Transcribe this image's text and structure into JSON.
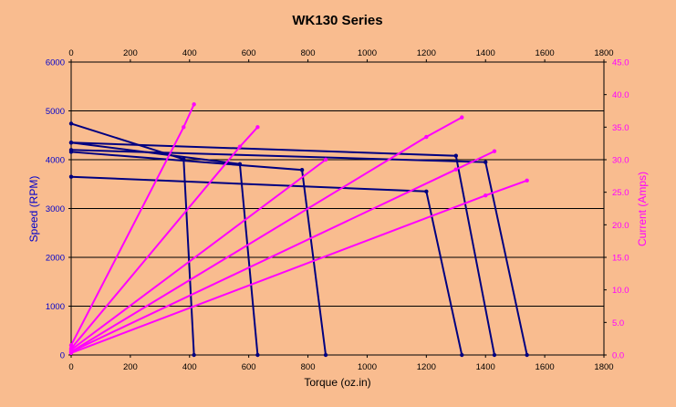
{
  "chart_data": {
    "type": "line",
    "title": "WK130 Series",
    "xlabel": "Torque (oz.in)",
    "ylabel_left": "Speed (RPM)",
    "ylabel_right": "Current (Amps)",
    "xlim": [
      0,
      1800
    ],
    "ylim_left": [
      0,
      6000
    ],
    "ylim_right": [
      0,
      45
    ],
    "x_ticks": [
      "0",
      "200",
      "400",
      "600",
      "800",
      "1000",
      "1200",
      "1400",
      "1600",
      "1800"
    ],
    "y_left_ticks": [
      "0",
      "1000",
      "2000",
      "3000",
      "4000",
      "5000",
      "6000"
    ],
    "y_right_ticks": [
      "0.0",
      "5.0",
      "10.0",
      "15.0",
      "20.0",
      "25.0",
      "30.0",
      "35.0",
      "40.0",
      "45.0"
    ],
    "grid": "horizontal",
    "colors": {
      "speed": "#000080",
      "current": "#FF00FF",
      "plot_bg": "#F9BC8F",
      "axis_left": "#0000CC",
      "axis_right": "#FF00FF"
    },
    "speed_series": [
      {
        "x": [
          0,
          380,
          415
        ],
        "y": [
          4740,
          4010,
          0
        ]
      },
      {
        "x": [
          0,
          570,
          630
        ],
        "y": [
          4350,
          3910,
          0
        ]
      },
      {
        "x": [
          0,
          780,
          860
        ],
        "y": [
          4160,
          3790,
          0
        ]
      },
      {
        "x": [
          0,
          1200,
          1320
        ],
        "y": [
          3650,
          3350,
          0
        ]
      },
      {
        "x": [
          0,
          1300,
          1430
        ],
        "y": [
          4350,
          4080,
          0
        ]
      },
      {
        "x": [
          0,
          1400,
          1540
        ],
        "y": [
          4200,
          3950,
          0
        ]
      }
    ],
    "current_series": [
      {
        "x": [
          0,
          380,
          415
        ],
        "y": [
          1.5,
          35.0,
          38.5
        ]
      },
      {
        "x": [
          0,
          570,
          630
        ],
        "y": [
          1.0,
          32.0,
          35.0
        ]
      },
      {
        "x": [
          0,
          860
        ],
        "y": [
          0.8,
          30.0
        ]
      },
      {
        "x": [
          0,
          1200,
          1320
        ],
        "y": [
          0.5,
          33.5,
          36.5
        ]
      },
      {
        "x": [
          0,
          1300,
          1430
        ],
        "y": [
          0.5,
          28.5,
          31.3
        ]
      },
      {
        "x": [
          0,
          1400,
          1540
        ],
        "y": [
          0.3,
          24.5,
          26.8
        ]
      }
    ]
  }
}
